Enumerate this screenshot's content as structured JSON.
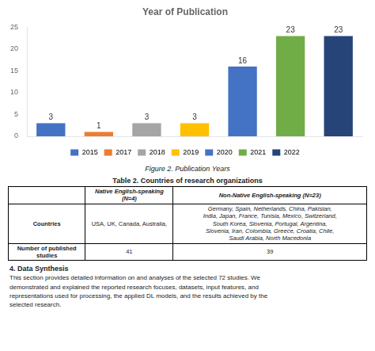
{
  "chart_data": {
    "type": "bar",
    "title": "Year of Publication",
    "categories": [
      "2015",
      "2017",
      "2018",
      "2019",
      "2020",
      "2021",
      "2022"
    ],
    "values": [
      3,
      1,
      3,
      3,
      16,
      23,
      23
    ],
    "colors": [
      "#4472c4",
      "#ed7d31",
      "#a5a5a5",
      "#ffc000",
      "#4472c4",
      "#70ad47",
      "#264478"
    ],
    "ylim": [
      0,
      25
    ],
    "yticks": [
      0,
      5,
      10,
      15,
      20,
      25
    ],
    "grid": false,
    "legend": "bottom",
    "data_labels": true,
    "tick_labels": "y"
  },
  "caption": "Figure 2. Publication Years",
  "table": {
    "title": "Table 2. Countries of research organizations",
    "headers": [
      "Native English-speaking (N=4)",
      "Non-Native English-speaking (N=23)"
    ],
    "rows": [
      {
        "label": "Countries",
        "cells": [
          "USA, UK, Canada, Australia,",
          "Germany, Spain, Netherlands, China, Pakistan,\nIndia, Japan, France, Tunisia, Mexico, Switzerland,\nSouth Korea, Slovenia, Portugal, Argentina,\nSlovenia, Iran, Colombia, Greece, Croatia, Chile,\nSaudi Arabia, North Macedonia"
        ]
      },
      {
        "label": "Number of published studies",
        "cells": [
          "41",
          "39"
        ]
      }
    ]
  },
  "section": {
    "header": "4. Data Synthesis",
    "body": "This section provides detailed information on and analyses of the selected 72 studies. We\ndemonstrated and explained the reported research focuses, datasets, input features, and\nrepresentations used for processing, the applied DL models, and the results achieved by the\nselected research."
  }
}
